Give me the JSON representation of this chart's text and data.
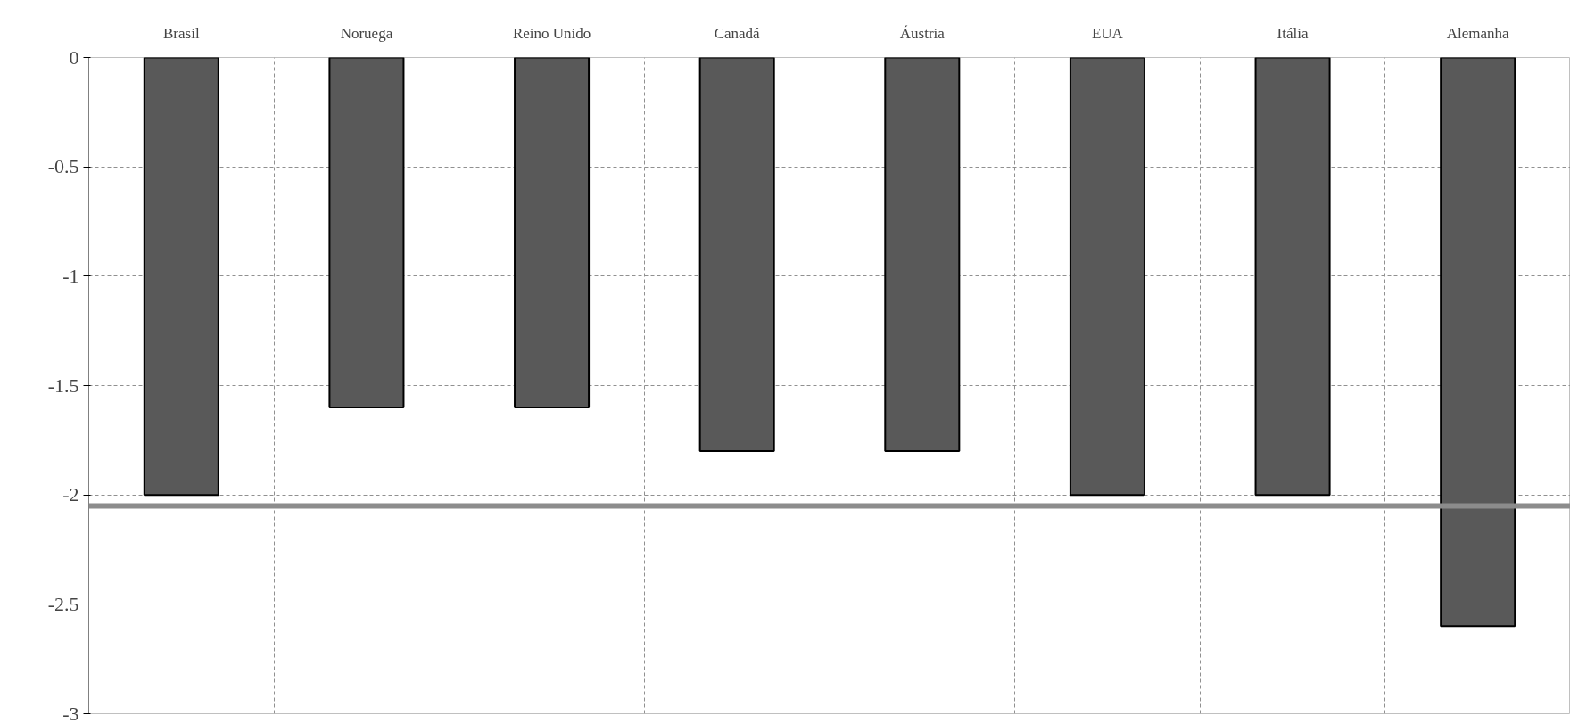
{
  "chart_data": {
    "type": "bar",
    "categories": [
      "Brasil",
      "Noruega",
      "Reino Unido",
      "Canadá",
      "Áustria",
      "EUA",
      "Itália",
      "Alemanha"
    ],
    "values": [
      -2.0,
      -1.6,
      -1.6,
      -1.8,
      -1.8,
      -2.0,
      -2.0,
      -2.6
    ],
    "color": "#595959",
    "ylim": [
      -3,
      0
    ],
    "yticks": [
      0,
      -0.5,
      -1,
      -1.5,
      -2,
      -2.5,
      -3
    ],
    "grid": true,
    "ref_lines": [
      {
        "axis": "y",
        "value": -2.05,
        "color": "#8c8c8c"
      }
    ]
  }
}
